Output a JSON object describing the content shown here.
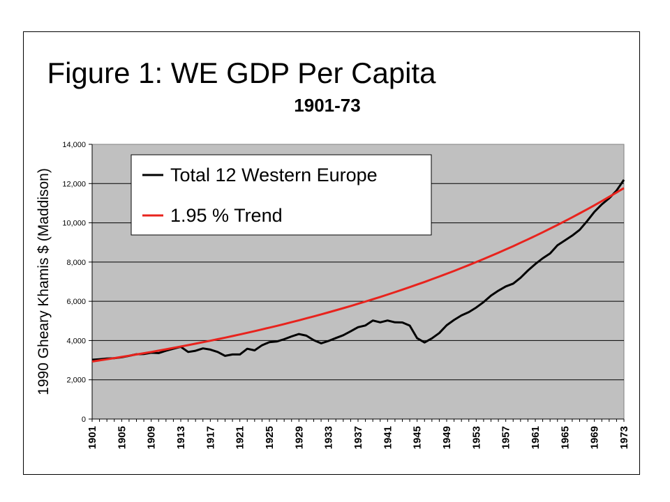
{
  "chart_data": {
    "type": "line",
    "title": "Figure 1: WE GDP Per Capita",
    "subtitle": "1901-73",
    "xlabel": "",
    "ylabel": "1990 Gheary Khamis $ (Maddison)",
    "ylim": [
      0,
      14000
    ],
    "yticks": [
      "0",
      "2,000",
      "4,000",
      "6,000",
      "8,000",
      "10,000",
      "12,000",
      "14,000"
    ],
    "xlim": [
      1901,
      1973
    ],
    "xticks": [
      "1901",
      "1905",
      "1909",
      "1913",
      "1917",
      "1921",
      "1925",
      "1929",
      "1933",
      "1937",
      "1941",
      "1945",
      "1949",
      "1953",
      "1957",
      "1961",
      "1965",
      "1969",
      "1973"
    ],
    "grid": true,
    "legend_position": "top-left",
    "plot_background": "#c0c0c0",
    "series": [
      {
        "name": "Total 12 Western Europe",
        "color": "#000000",
        "x": [
          1901,
          1902,
          1903,
          1904,
          1905,
          1906,
          1907,
          1908,
          1909,
          1910,
          1911,
          1912,
          1913,
          1914,
          1915,
          1916,
          1917,
          1918,
          1919,
          1920,
          1921,
          1922,
          1923,
          1924,
          1925,
          1926,
          1927,
          1928,
          1929,
          1930,
          1931,
          1932,
          1933,
          1934,
          1935,
          1936,
          1937,
          1938,
          1939,
          1940,
          1941,
          1942,
          1943,
          1944,
          1945,
          1946,
          1947,
          1948,
          1949,
          1950,
          1951,
          1952,
          1953,
          1954,
          1955,
          1956,
          1957,
          1958,
          1959,
          1960,
          1961,
          1962,
          1963,
          1964,
          1965,
          1966,
          1967,
          1968,
          1969,
          1970,
          1971,
          1972,
          1973
        ],
        "y": [
          3020,
          3050,
          3080,
          3100,
          3150,
          3220,
          3300,
          3310,
          3380,
          3360,
          3480,
          3580,
          3680,
          3420,
          3480,
          3600,
          3540,
          3420,
          3220,
          3290,
          3290,
          3580,
          3500,
          3760,
          3920,
          3950,
          4070,
          4210,
          4330,
          4250,
          4020,
          3860,
          3980,
          4130,
          4270,
          4470,
          4680,
          4770,
          5020,
          4930,
          5020,
          4930,
          4920,
          4760,
          4120,
          3900,
          4110,
          4380,
          4780,
          5050,
          5280,
          5450,
          5680,
          5960,
          6290,
          6540,
          6760,
          6900,
          7200,
          7570,
          7900,
          8190,
          8440,
          8860,
          9100,
          9350,
          9640,
          10080,
          10560,
          10940,
          11250,
          11640,
          12190
        ]
      },
      {
        "name": "1.95 % Trend",
        "color": "#e8231d",
        "x": [
          1901,
          1973
        ],
        "growth_rate_percent": 1.95,
        "start_value": 2930,
        "end_value": 11780
      }
    ]
  }
}
